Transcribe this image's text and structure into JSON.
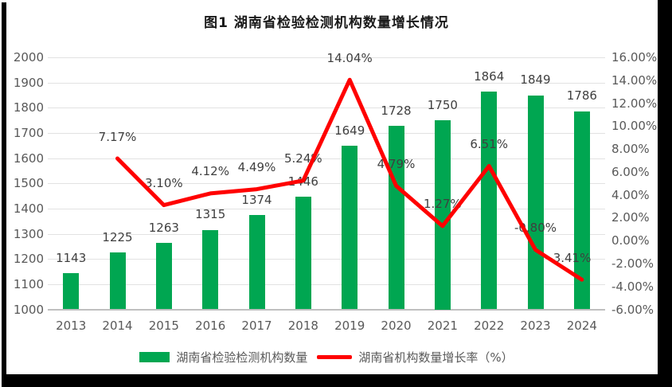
{
  "title": "图1 湖南省检验检测机构数量增长情况",
  "colors": {
    "bar": "#00a651",
    "line": "#ff0000",
    "grid": "#e2e2e2",
    "axis_line": "#bfbfbf",
    "axis_text": "#595959",
    "data_label": "#3f3f3f",
    "frame": "#000000"
  },
  "chart_data": {
    "type": "bar",
    "subtype": "combo-bar-line-dual-axis",
    "title": "图1 湖南省检验检测机构数量增长情况",
    "categories": [
      "2013",
      "2014",
      "2015",
      "2016",
      "2017",
      "2018",
      "2019",
      "2020",
      "2021",
      "2022",
      "2023",
      "2024"
    ],
    "series": [
      {
        "name": "湖南省检验检测机构数量",
        "type": "bar",
        "axis": "left",
        "values": [
          1143,
          1225,
          1263,
          1315,
          1374,
          1446,
          1649,
          1728,
          1750,
          1864,
          1849,
          1786
        ],
        "labels": [
          "1143",
          "1225",
          "1263",
          "1315",
          "1374",
          "1446",
          "1649",
          "1728",
          "1750",
          "1864",
          "1849",
          "1786"
        ]
      },
      {
        "name": "湖南省机构数量增长率（%）",
        "type": "line",
        "axis": "right",
        "values": [
          null,
          7.17,
          3.1,
          4.12,
          4.49,
          5.24,
          14.04,
          4.79,
          1.27,
          6.51,
          -0.8,
          -3.41
        ],
        "labels": [
          null,
          "7.17%",
          "3.10%",
          "4.12%",
          "4.49%",
          "5.24%",
          "14.04%",
          "4.79%",
          "1.27%",
          "6.51%",
          "-0.80%",
          "-3.41%"
        ]
      }
    ],
    "left_axis": {
      "min": 1000,
      "max": 2000,
      "step": 100,
      "ticks": [
        "2000",
        "1900",
        "1800",
        "1700",
        "1600",
        "1500",
        "1400",
        "1300",
        "1200",
        "1100",
        "1000"
      ]
    },
    "right_axis": {
      "min": -6,
      "max": 16,
      "step": 2,
      "ticks": [
        "16.00%",
        "14.00%",
        "12.00%",
        "10.00%",
        "8.00%",
        "6.00%",
        "4.00%",
        "2.00%",
        "0.00%",
        "-2.00%",
        "-4.00%",
        "-6.00%"
      ]
    },
    "grid": true,
    "legend_position": "bottom",
    "legend": [
      "湖南省检验检测机构数量",
      "湖南省机构数量增长率（%）"
    ]
  }
}
